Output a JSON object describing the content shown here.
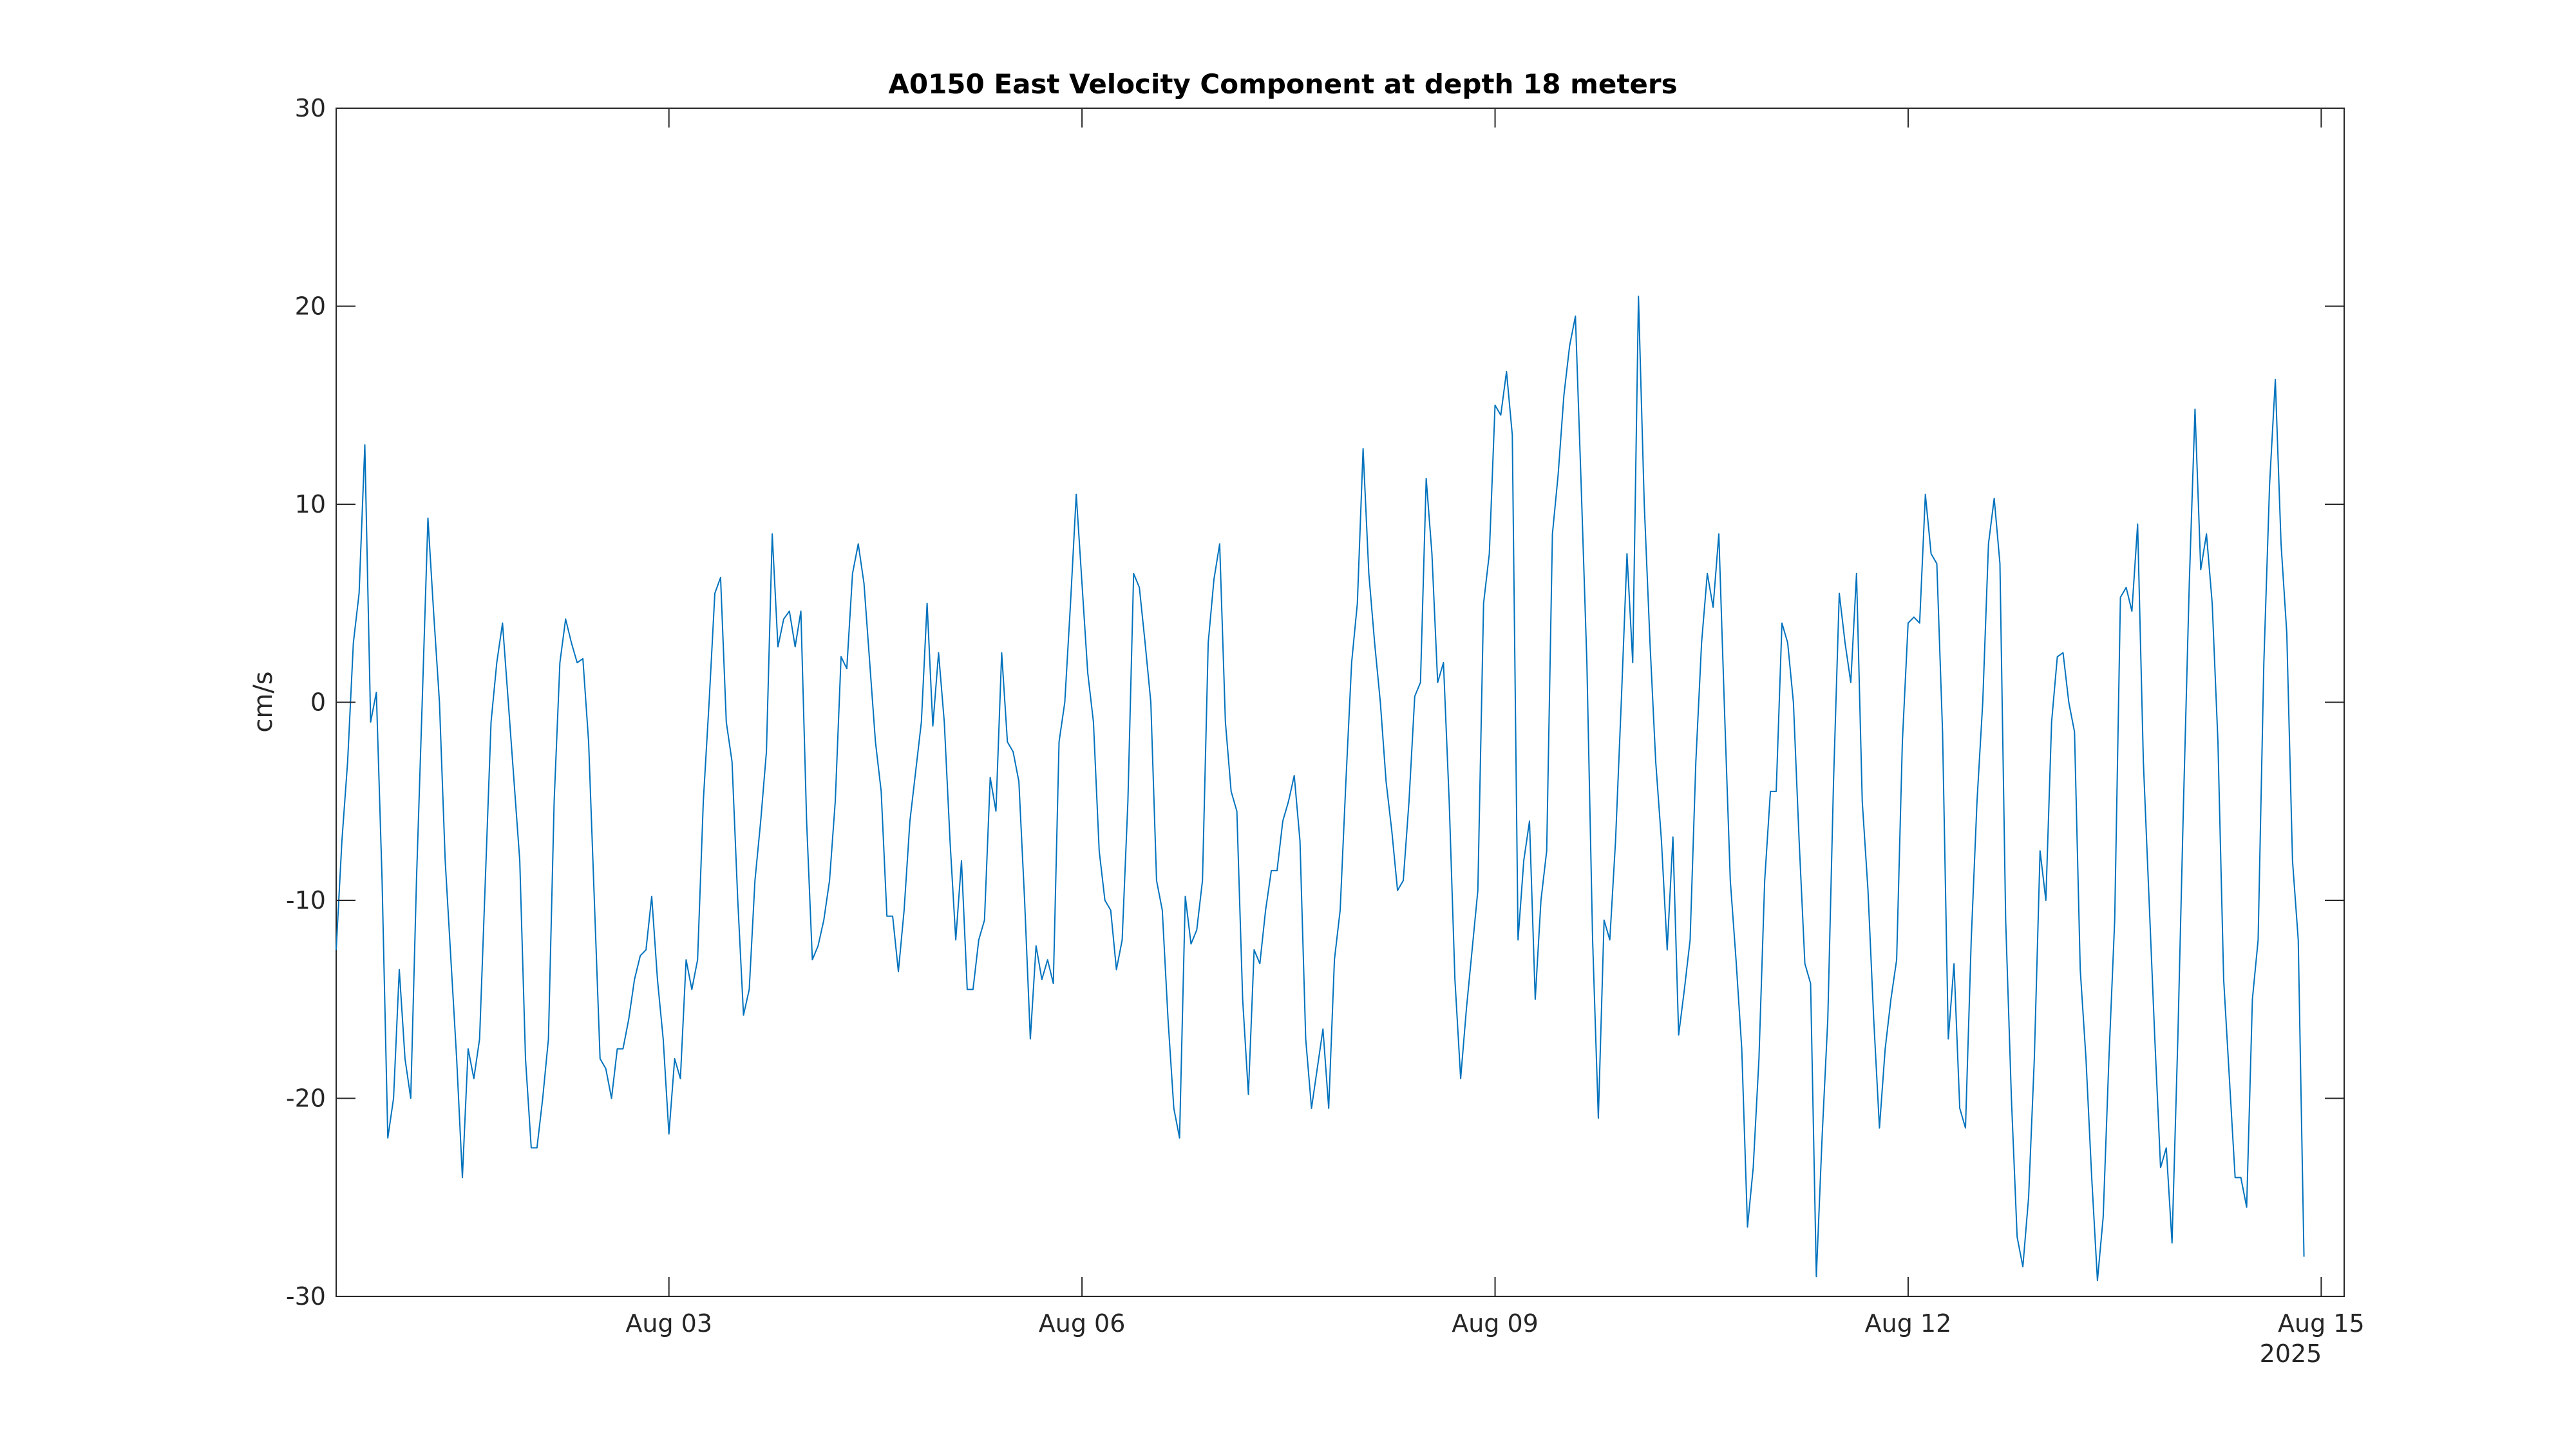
{
  "chart_data": {
    "type": "line",
    "title": "A0150 East Velocity Component at depth 18 meters",
    "xlabel": "",
    "ylabel": "cm/s",
    "xlim": [
      "2025-07-31T14:00",
      "2025-08-15T04:00"
    ],
    "ylim": [
      -30,
      30
    ],
    "yticks": [
      30,
      20,
      10,
      0,
      -10,
      -20,
      -30
    ],
    "xticks": [
      {
        "date": "2025-08-03",
        "label": "Aug 03"
      },
      {
        "date": "2025-08-06",
        "label": "Aug 06"
      },
      {
        "date": "2025-08-09",
        "label": "Aug 09"
      },
      {
        "date": "2025-08-12",
        "label": "Aug 12"
      },
      {
        "date": "2025-08-15",
        "label": "Aug 15"
      }
    ],
    "year_label": "2025",
    "grid": false,
    "line_color": "#0072BD",
    "series": [
      {
        "x_start": "2025-07-31T14:00",
        "x_step_hours": 1,
        "values": [
          -12.5,
          -7,
          -3,
          3,
          5.5,
          13,
          -1,
          0.5,
          -9,
          -22,
          -20,
          -13.5,
          -18,
          -20,
          -9,
          0,
          9.3,
          4.5,
          0,
          -8,
          -13,
          -18,
          -24,
          -17.5,
          -19,
          -17,
          -9,
          -1,
          2,
          4,
          0,
          -4,
          -8,
          -18,
          -22.5,
          -22.5,
          -20,
          -17,
          -5,
          2,
          4.2,
          3,
          2,
          2.2,
          -2,
          -10,
          -18,
          -18.5,
          -20,
          -17.5,
          -17.5,
          -16,
          -14,
          -12.8,
          -12.5,
          -9.8,
          -14,
          -17,
          -21.8,
          -18,
          -19,
          -13,
          -14.5,
          -13,
          -5,
          0,
          5.5,
          6.3,
          -1,
          -3,
          -10,
          -15.8,
          -14.5,
          -9,
          -6,
          -2.5,
          8.5,
          2.8,
          4.2,
          4.6,
          2.8,
          4.6,
          -6,
          -13,
          -12.3,
          -11,
          -9,
          -5,
          2.3,
          1.7,
          6.5,
          8,
          6,
          2,
          -2,
          -4.5,
          -10.8,
          -10.8,
          -13.6,
          -10.5,
          -6,
          -3.5,
          -1,
          5,
          -1.2,
          2.5,
          -1,
          -7,
          -12,
          -8,
          -14.5,
          -14.5,
          -12,
          -11,
          -3.8,
          -5.5,
          2.5,
          -2,
          -2.5,
          -4,
          -10,
          -17,
          -12.3,
          -14,
          -13,
          -14.2,
          -2,
          0,
          5,
          10.5,
          6,
          1.5,
          -1,
          -7.5,
          -10,
          -10.5,
          -13.5,
          -12,
          -5,
          6.5,
          5.8,
          3,
          0,
          -9,
          -10.5,
          -16,
          -20.5,
          -22,
          -9.8,
          -12.2,
          -11.5,
          -9,
          3,
          6.2,
          8,
          -1,
          -4.5,
          -5.5,
          -15,
          -19.8,
          -12.5,
          -13.2,
          -10.5,
          -8.5,
          -8.5,
          -6,
          -5,
          -3.7,
          -7,
          -17,
          -20.5,
          -18.5,
          -16.5,
          -20.5,
          -13,
          -10.5,
          -4,
          2,
          5,
          12.8,
          6.5,
          3,
          0,
          -4,
          -6.5,
          -9.5,
          -9,
          -5,
          0.3,
          1,
          11.3,
          7.5,
          1,
          2,
          -5,
          -14,
          -19,
          -15.5,
          -12.5,
          -9.5,
          5,
          7.5,
          15,
          14.5,
          16.7,
          13.5,
          -12,
          -8,
          -6,
          -15,
          -10,
          -7.5,
          8.5,
          11.5,
          15.5,
          18,
          19.5,
          11,
          2,
          -12,
          -21,
          -11,
          -12,
          -7,
          0,
          7.5,
          2,
          20.5,
          10,
          3,
          -3,
          -7,
          -12.5,
          -6.8,
          -16.8,
          -14.5,
          -12,
          -3,
          3,
          6.5,
          4.8,
          8.5,
          -0.5,
          -9,
          -13,
          -17.5,
          -26.5,
          -23.5,
          -18,
          -9,
          -4.5,
          -4.5,
          4,
          3,
          0,
          -7,
          -13.2,
          -14.2,
          -29,
          -22,
          -16,
          -4,
          5.5,
          3,
          1,
          6.5,
          -5,
          -9.5,
          -16,
          -21.5,
          -17.5,
          -15,
          -13,
          -2,
          4,
          4.3,
          4,
          10.5,
          7.5,
          7,
          -1.5,
          -17,
          -13.2,
          -20.5,
          -21.5,
          -12,
          -5,
          0,
          8,
          10.3,
          7,
          -11,
          -20,
          -27,
          -28.5,
          -25,
          -18,
          -7.5,
          -10,
          -1,
          2.3,
          2.5,
          0,
          -1.5,
          -13.5,
          -18,
          -24,
          -29.2,
          -26,
          -18,
          -11,
          5.3,
          5.8,
          4.6,
          9,
          -3,
          -10,
          -17,
          -23.5,
          -22.5,
          -27.3,
          -17,
          -5,
          6,
          14.8,
          6.7,
          8.5,
          5,
          -2,
          -14,
          -19,
          -24,
          -24,
          -25.5,
          -15,
          -12,
          2,
          11,
          16.3,
          8,
          3.5,
          -8,
          -12,
          -28
        ]
      }
    ]
  }
}
